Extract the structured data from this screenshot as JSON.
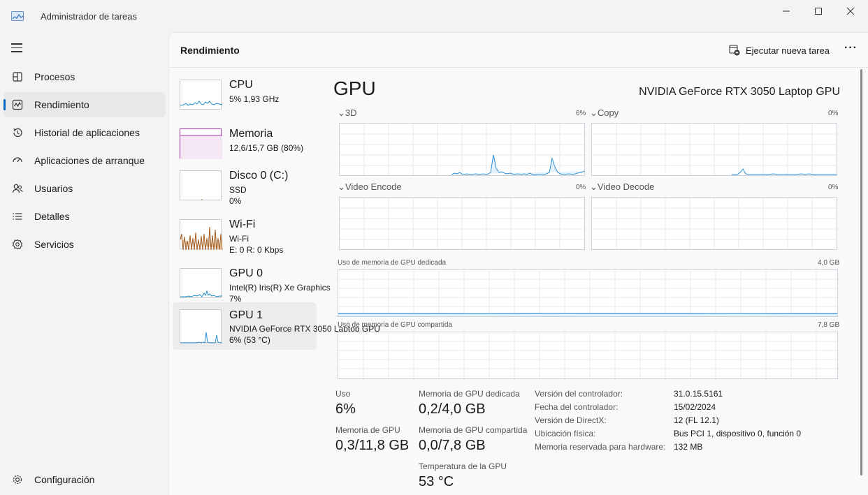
{
  "window": {
    "title": "Administrador de tareas",
    "minimize": "—",
    "maximize": "☐",
    "close": "✕"
  },
  "sidebar": {
    "items": [
      {
        "label": "Procesos",
        "icon": "processes-icon"
      },
      {
        "label": "Rendimiento",
        "icon": "performance-icon",
        "active": true
      },
      {
        "label": "Historial de aplicaciones",
        "icon": "history-icon"
      },
      {
        "label": "Aplicaciones de arranque",
        "icon": "startup-icon"
      },
      {
        "label": "Usuarios",
        "icon": "users-icon"
      },
      {
        "label": "Detalles",
        "icon": "details-icon"
      },
      {
        "label": "Servicios",
        "icon": "services-icon"
      }
    ],
    "settings_label": "Configuración"
  },
  "header": {
    "title": "Rendimiento",
    "run_task_label": "Ejecutar nueva tarea",
    "more_label": "···"
  },
  "devices": [
    {
      "name": "CPU",
      "line1": "5%  1,93 GHz",
      "line2": ""
    },
    {
      "name": "Memoria",
      "line1": "12,6/15,7 GB (80%)",
      "line2": ""
    },
    {
      "name": "Disco 0 (C:)",
      "line1": "SSD",
      "line2": "0%"
    },
    {
      "name": "Wi-Fi",
      "line1": "Wi-Fi",
      "line2": "E: 0  R: 0 Kbps"
    },
    {
      "name": "GPU 0",
      "line1": "Intel(R) Iris(R) Xe Graphics",
      "line2": "7%"
    },
    {
      "name": "GPU 1",
      "line1": "NVIDIA GeForce RTX 3050 Laptop GPU",
      "line2": "6% (53 °C)",
      "active": true
    }
  ],
  "detail": {
    "title": "GPU",
    "model": "NVIDIA GeForce RTX 3050 Laptop GPU",
    "engines": [
      {
        "label": "3D",
        "pct": "6%"
      },
      {
        "label": "Copy",
        "pct": "0%"
      },
      {
        "label": "Video Encode",
        "pct": "0%"
      },
      {
        "label": "Video Decode",
        "pct": "0%"
      }
    ],
    "dedicated_label": "Uso de memoria de GPU dedicada",
    "dedicated_max": "4,0 GB",
    "shared_label": "Uso de memoria de GPU compartida",
    "shared_max": "7,8 GB",
    "stats": {
      "uso_label": "Uso",
      "uso_value": "6%",
      "mem_label": "Memoria de GPU",
      "mem_value": "0,3/11,8 GB",
      "ded_label": "Memoria de GPU dedicada",
      "ded_value": "0,2/4,0 GB",
      "shared_label": "Memoria de GPU compartida",
      "shared_value": "0,0/7,8 GB",
      "temp_label": "Temperatura de la GPU",
      "temp_value": "53 °C"
    },
    "info": [
      {
        "key": "Versión del controlador:",
        "value": "31.0.15.5161"
      },
      {
        "key": "Fecha del controlador:",
        "value": "15/02/2024"
      },
      {
        "key": "Versión de DirectX:",
        "value": "12 (FL 12.1)"
      },
      {
        "key": "Ubicación física:",
        "value": "Bus PCI 1, dispositivo 0, función 0"
      },
      {
        "key": "Memoria reservada para hardware:",
        "value": "132 MB"
      }
    ]
  },
  "colors": {
    "accent": "#0067c0",
    "cpu_line": "#1a8bc7",
    "memory_line": "#a33aa6",
    "wifi_line": "#a25a1e",
    "gpu_line": "#2d8fd5"
  }
}
